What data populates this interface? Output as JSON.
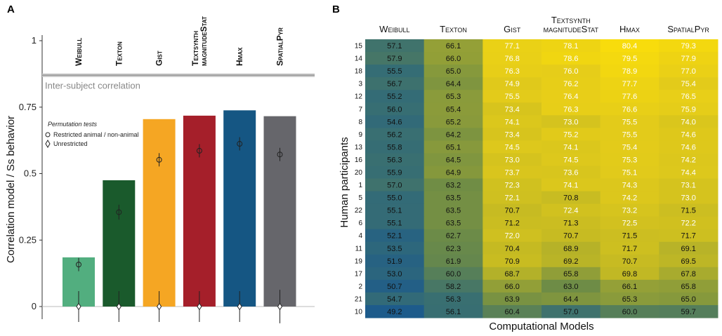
{
  "chart_data": [
    {
      "panel": "A",
      "type": "bar",
      "ylabel": "Correlation model / Ss behavior",
      "ylim": [
        0,
        1
      ],
      "yticks": [
        "0",
        "0.25",
        "0.5",
        "0.75",
        "1"
      ],
      "ytick_values": [
        0,
        0.25,
        0.5,
        0.75,
        1
      ],
      "categories": [
        "Weibull",
        "Texton",
        "Gist",
        "Textsynth magnitudeStat",
        "Hmax",
        "SpatialPyr"
      ],
      "values": [
        0.185,
        0.475,
        0.705,
        0.718,
        0.738,
        0.716
      ],
      "colors": [
        "#52ae7f",
        "#1a5a2c",
        "#f5a623",
        "#a51f2a",
        "#155683",
        "#66666b"
      ],
      "inter_subject_correlation": {
        "label": "Inter-subject correlation",
        "value": 0.87
      },
      "permutation_restricted": [
        {
          "mean": 0.158,
          "err": 0.025
        },
        {
          "mean": 0.355,
          "err": 0.028
        },
        {
          "mean": 0.552,
          "err": 0.025
        },
        {
          "mean": 0.586,
          "err": 0.025
        },
        {
          "mean": 0.612,
          "err": 0.025
        },
        {
          "mean": 0.572,
          "err": 0.025
        }
      ],
      "permutation_unrestricted": [
        {
          "mean": 0.0,
          "err": 0.058
        },
        {
          "mean": 0.0,
          "err": 0.058
        },
        {
          "mean": 0.0,
          "err": 0.058
        },
        {
          "mean": 0.0,
          "err": 0.058
        },
        {
          "mean": 0.0,
          "err": 0.058
        },
        {
          "mean": 0.0,
          "err": 0.063
        }
      ],
      "legend": {
        "title": "Permutation tests",
        "items": [
          "Restricted animal / non-animal",
          "Unrestricted"
        ]
      }
    },
    {
      "panel": "B",
      "type": "heatmap",
      "xlabel": "Computational Models",
      "ylabel": "Human participants",
      "columns": [
        "Weibull",
        "Texton",
        "Gist",
        "Textsynth magnitudeStat",
        "Hmax",
        "SpatialPyr"
      ],
      "rows": [
        "15",
        "14",
        "18",
        "3",
        "12",
        "7",
        "8",
        "9",
        "13",
        "16",
        "20",
        "1",
        "5",
        "22",
        "6",
        "4",
        "11",
        "19",
        "17",
        "2",
        "21",
        "10"
      ],
      "values": [
        [
          "57.1",
          "66.1",
          "77.1",
          "78.1",
          "80.4",
          "79.3"
        ],
        [
          "57.9",
          "66.0",
          "76.8",
          "78.6",
          "79.5",
          "77.9"
        ],
        [
          "55.5",
          "65.0",
          "76.3",
          "76.0",
          "78.9",
          "77.0"
        ],
        [
          "56.7",
          "64.4",
          "74.9",
          "76.2",
          "77.7",
          "75.4"
        ],
        [
          "55.2",
          "65.3",
          "75.5",
          "76.4",
          "77.6",
          "76.5"
        ],
        [
          "56.0",
          "65.4",
          "73.4",
          "76.3",
          "76.6",
          "75.9"
        ],
        [
          "54.6",
          "65.2",
          "74.1",
          "73.0",
          "75.5",
          "74.0"
        ],
        [
          "56.2",
          "64.2",
          "73.4",
          "75.2",
          "75.5",
          "74.6"
        ],
        [
          "55.8",
          "65.1",
          "74.5",
          "74.1",
          "75.4",
          "74.6"
        ],
        [
          "56.3",
          "64.5",
          "73.0",
          "74.5",
          "75.3",
          "74.2"
        ],
        [
          "55.9",
          "64.9",
          "73.7",
          "73.6",
          "75.1",
          "74.4"
        ],
        [
          "57.0",
          "63.2",
          "72.3",
          "74.1",
          "74.3",
          "73.1"
        ],
        [
          "55.0",
          "63.5",
          "72.1",
          "70.8",
          "74.2",
          "73.0"
        ],
        [
          "55.1",
          "63.5",
          "70.7",
          "72.4",
          "73.2",
          "71.5"
        ],
        [
          "55.1",
          "63.5",
          "71.2",
          "71.3",
          "72.5",
          "72.2"
        ],
        [
          "52.1",
          "62.7",
          "72.0",
          "70.7",
          "71.5",
          "71.7"
        ],
        [
          "53.5",
          "62.3",
          "70.4",
          "68.9",
          "71.7",
          "69.1"
        ],
        [
          "51.9",
          "61.9",
          "70.9",
          "69.2",
          "70.7",
          "69.5"
        ],
        [
          "53.0",
          "60.0",
          "68.7",
          "65.8",
          "69.8",
          "67.8"
        ],
        [
          "50.7",
          "58.2",
          "66.0",
          "63.0",
          "66.1",
          "65.8"
        ],
        [
          "54.7",
          "56.3",
          "63.9",
          "64.4",
          "65.3",
          "65.0"
        ],
        [
          "49.2",
          "56.1",
          "60.4",
          "57.0",
          "60.0",
          "59.7"
        ]
      ]
    }
  ]
}
